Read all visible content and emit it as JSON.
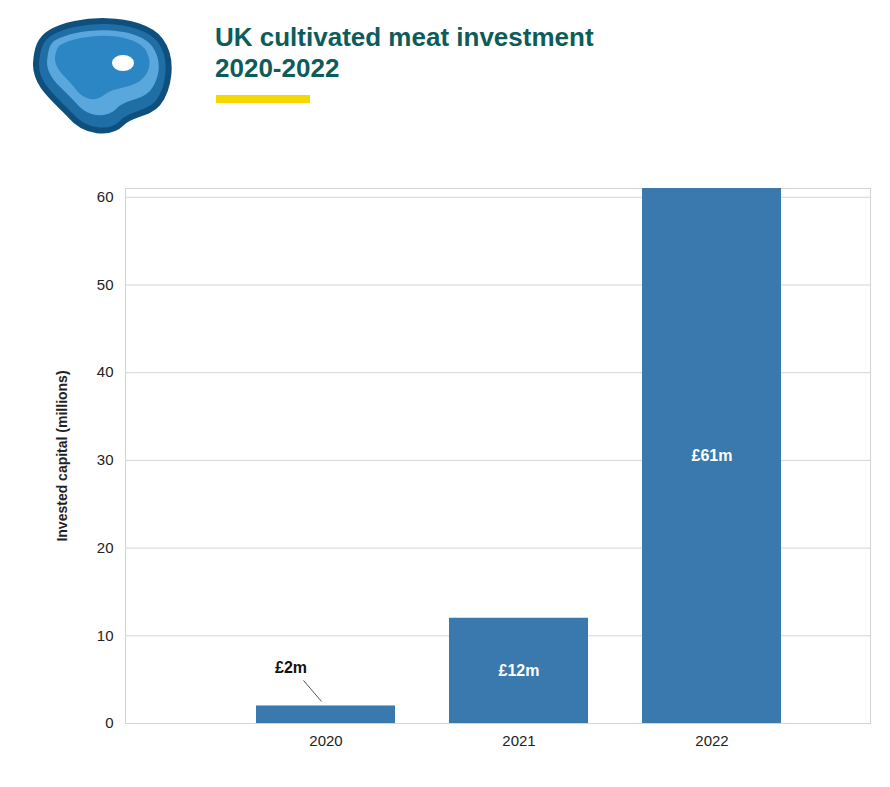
{
  "chart_data": {
    "type": "bar",
    "title": "UK cultivated meat investment 2020-2022",
    "ylabel": "Invested capital (millions)",
    "categories": [
      "2020",
      "2021",
      "2022"
    ],
    "values": [
      2,
      12,
      61
    ],
    "value_labels": [
      "£2m",
      "£12m",
      "£61m"
    ],
    "data_labels": true,
    "color": "#3a79ad",
    "ylim": [
      0,
      61
    ],
    "yticks": [
      0,
      10,
      20,
      30,
      40,
      50,
      60
    ],
    "grid": true
  }
}
